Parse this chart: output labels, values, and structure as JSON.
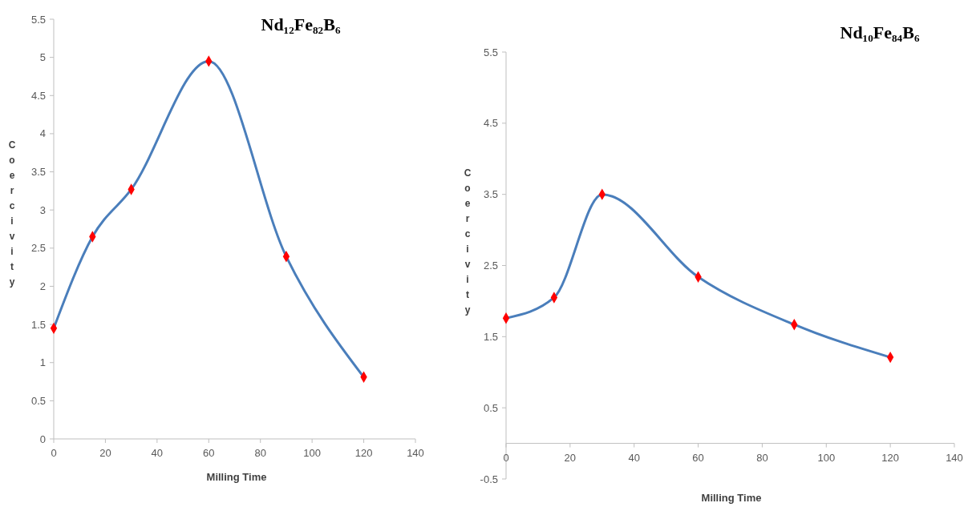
{
  "chart_data": [
    {
      "type": "line",
      "title": "Nd₁₂Fe₈₂B₆",
      "xlabel": "Milling Time",
      "ylabel": "Coercivity",
      "x": [
        0,
        15,
        30,
        60,
        90,
        120
      ],
      "series": [
        {
          "color": "#4a7ebb",
          "values": [
            1.45,
            2.65,
            3.27,
            4.95,
            2.39,
            0.81
          ]
        }
      ],
      "marker": "diamond",
      "xlim": [
        0,
        140
      ],
      "xticks": [
        0,
        20,
        40,
        60,
        80,
        100,
        120,
        140
      ],
      "ylim": [
        0,
        5.5
      ],
      "yticks": [
        0,
        0.5,
        1,
        1.5,
        2,
        2.5,
        3,
        3.5,
        4,
        4.5,
        5,
        5.5
      ],
      "grid": false
    },
    {
      "type": "line",
      "title": "Nd₁₀Fe₈₄B₆",
      "xlabel": "Milling Time",
      "ylabel": "Coercivity",
      "x": [
        0,
        15,
        30,
        60,
        90,
        120
      ],
      "series": [
        {
          "color": "#4a7ebb",
          "values": [
            1.76,
            2.05,
            3.5,
            2.34,
            1.67,
            1.21
          ]
        }
      ],
      "marker": "diamond",
      "xlim": [
        0,
        140
      ],
      "xticks": [
        0,
        20,
        40,
        60,
        80,
        100,
        120,
        140
      ],
      "ylim": [
        -0.5,
        5.5
      ],
      "yticks": [
        -0.5,
        0.5,
        1.5,
        2.5,
        3.5,
        4.5,
        5.5
      ],
      "grid": false
    }
  ]
}
